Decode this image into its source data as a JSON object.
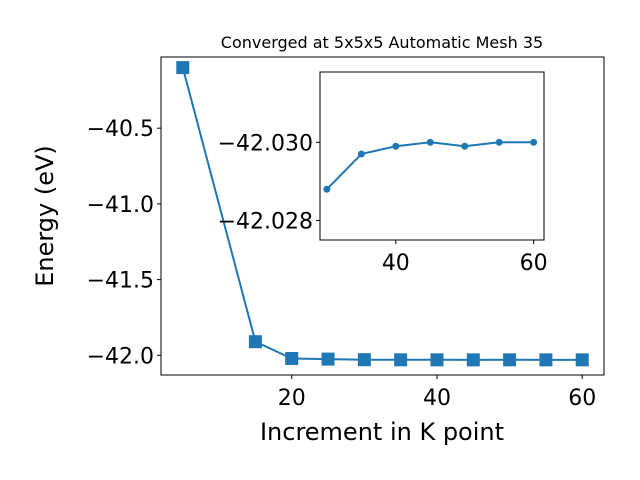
{
  "chart_data": {
    "type": "line",
    "title": "Converged at 5x5x5 Automatic Mesh 35",
    "xlabel": "Increment in K point",
    "ylabel": "Energy (eV)",
    "color": "#1f77b4",
    "main": {
      "x": [
        5,
        15,
        20,
        25,
        30,
        35,
        40,
        45,
        50,
        55,
        60
      ],
      "y": [
        -40.1,
        -41.91,
        -42.021,
        -42.025,
        -42.0288,
        -42.0297,
        -42.0299,
        -42.03,
        -42.0299,
        -42.03,
        -42.03
      ],
      "xlim": [
        2,
        63
      ],
      "ylim": [
        -42.13,
        -40.03
      ],
      "xticks": [
        20,
        40,
        60
      ],
      "xtick_labels": [
        "20",
        "40",
        "60"
      ],
      "yticks": [
        -40.5,
        -41.0,
        -41.5,
        -42.0
      ],
      "ytick_labels": [
        "−40.5",
        "−41.0",
        "−41.5",
        "−42.0"
      ],
      "marker": "square"
    },
    "inset": {
      "x": [
        30,
        35,
        40,
        45,
        50,
        55,
        60
      ],
      "y": [
        -42.0288,
        -42.0297,
        -42.0299,
        -42.03,
        -42.0299,
        -42.03,
        -42.03
      ],
      "xlim": [
        29,
        61.5
      ],
      "ylim": [
        -42.0275,
        -42.0318
      ],
      "xticks": [
        40,
        60
      ],
      "xtick_labels": [
        "40",
        "60"
      ],
      "yticks": [
        -42.03,
        -42.028
      ],
      "ytick_labels": [
        "−42.030",
        "−42.028"
      ],
      "marker": "circle"
    }
  }
}
